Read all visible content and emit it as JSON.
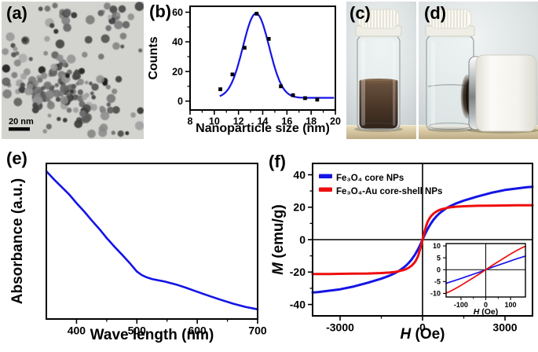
{
  "figure": {
    "panels": {
      "a": {
        "label": "(a)",
        "kind": "TEM micrograph of nanoparticles",
        "scalebar": "20 nm"
      },
      "b": {
        "label": "(b)",
        "kind": "particle size distribution chart"
      },
      "c": {
        "label": "(c)",
        "kind": "photo: vial with brown nanoparticle dispersion"
      },
      "d": {
        "label": "(d)",
        "kind": "photo: vial with clear liquid, particles pulled to white magnet"
      },
      "e": {
        "label": "(e)",
        "kind": "UV-vis absorbance spectrum"
      },
      "f": {
        "label": "(f)",
        "kind": "magnetization curves"
      }
    }
  },
  "chart_data": [
    {
      "id": "size-distribution",
      "type": "scatter",
      "xlabel": [
        {
          "text": "Nanoparticle size (nm)"
        }
      ],
      "ylabel": [
        {
          "text": "Counts"
        }
      ],
      "xlim": [
        8,
        20
      ],
      "ylim": [
        -6,
        64
      ],
      "xticks": [
        8,
        10,
        12,
        14,
        16,
        18,
        20
      ],
      "xminor": [
        9,
        11,
        13,
        15,
        17,
        19
      ],
      "yticks": [
        0,
        20,
        40,
        60
      ],
      "yminor": [
        10,
        30,
        50
      ],
      "grid": false,
      "point_color": "#000000",
      "points": [
        [
          10.5,
          8
        ],
        [
          11.5,
          18
        ],
        [
          12.5,
          36
        ],
        [
          13.5,
          59
        ],
        [
          14.5,
          42
        ],
        [
          15.5,
          10
        ],
        [
          16.5,
          4
        ],
        [
          17.5,
          2
        ],
        [
          18.5,
          1
        ]
      ],
      "fit": {
        "type": "gaussian",
        "color": "#1414e6",
        "baseline": 2.2,
        "amplitude": 57,
        "center": 13.45,
        "sigma": 1.08,
        "range": [
          10.45,
          19.9
        ]
      }
    },
    {
      "id": "uv-vis",
      "type": "line",
      "xlabel": [
        {
          "text": "Wave length (nm)"
        }
      ],
      "ylabel": [
        {
          "text": "Absorbance (a.u.)"
        }
      ],
      "xlim": [
        350,
        700
      ],
      "ylim": [
        0,
        1
      ],
      "xticks": [
        400,
        500,
        600,
        700
      ],
      "xminor": [
        450,
        550,
        650
      ],
      "yticks": [],
      "yminor": [],
      "grid": false,
      "series": [
        {
          "name": "absorbance",
          "color": "#1414e6",
          "points": [
            [
              350,
              0.95
            ],
            [
              362,
              0.9
            ],
            [
              375,
              0.85
            ],
            [
              388,
              0.8
            ],
            [
              400,
              0.745
            ],
            [
              413,
              0.69
            ],
            [
              425,
              0.635
            ],
            [
              438,
              0.578
            ],
            [
              450,
              0.52
            ],
            [
              462,
              0.468
            ],
            [
              475,
              0.415
            ],
            [
              488,
              0.36
            ],
            [
              500,
              0.305
            ],
            [
              508,
              0.283
            ],
            [
              516,
              0.268
            ],
            [
              525,
              0.257
            ],
            [
              535,
              0.249
            ],
            [
              545,
              0.242
            ],
            [
              555,
              0.232
            ],
            [
              568,
              0.218
            ],
            [
              582,
              0.2
            ],
            [
              600,
              0.175
            ],
            [
              620,
              0.148
            ],
            [
              640,
              0.122
            ],
            [
              660,
              0.098
            ],
            [
              680,
              0.078
            ],
            [
              700,
              0.062
            ]
          ]
        }
      ]
    },
    {
      "id": "magnetization",
      "type": "line",
      "xlabel": [
        {
          "text": "H",
          "italic": true
        },
        {
          "text": " (Oe)"
        }
      ],
      "ylabel": [
        {
          "text": "M",
          "italic": true
        },
        {
          "text": " (emu/g)"
        }
      ],
      "xlim": [
        -4000,
        4000
      ],
      "ylim": [
        -47,
        47
      ],
      "xticks": [
        -3000,
        0,
        3000
      ],
      "xminor": [
        -1500,
        1500
      ],
      "yticks": [
        -40,
        -20,
        0,
        20,
        40
      ],
      "yminor": [
        -30,
        -10,
        10,
        30
      ],
      "grid": false,
      "zero_axes": true,
      "legend": [
        {
          "label": "Fe₃O₄ core NPs",
          "color": "#1414e6"
        },
        {
          "label": "Fe₃O₄-Au core-shell NPs",
          "color": "#ee0e0e"
        }
      ],
      "series": [
        {
          "name": "Fe3O4 core NPs",
          "color": "#1414e6",
          "symmetric": true,
          "points": [
            [
              0,
              0
            ],
            [
              10,
              0.4
            ],
            [
              25,
              1.0
            ],
            [
              50,
              1.9
            ],
            [
              75,
              2.8
            ],
            [
              100,
              3.7
            ],
            [
              125,
              4.6
            ],
            [
              150,
              5.4
            ],
            [
              175,
              6.2
            ],
            [
              200,
              7.0
            ],
            [
              250,
              8.5
            ],
            [
              300,
              9.9
            ],
            [
              400,
              12.3
            ],
            [
              500,
              14.3
            ],
            [
              600,
              16.0
            ],
            [
              700,
              17.4
            ],
            [
              800,
              18.6
            ],
            [
              900,
              19.7
            ],
            [
              1000,
              20.6
            ],
            [
              1200,
              22.2
            ],
            [
              1500,
              24.1
            ],
            [
              2000,
              26.6
            ],
            [
              2500,
              28.9
            ],
            [
              3000,
              30.6
            ],
            [
              3400,
              31.5
            ],
            [
              3800,
              32.3
            ],
            [
              4000,
              32.6
            ]
          ]
        },
        {
          "name": "Fe3O4-Au core-shell NPs",
          "color": "#ee0e0e",
          "symmetric": true,
          "points": [
            [
              0,
              0
            ],
            [
              10,
              0.7
            ],
            [
              25,
              1.75
            ],
            [
              50,
              3.4
            ],
            [
              75,
              5.0
            ],
            [
              100,
              6.6
            ],
            [
              125,
              8.1
            ],
            [
              150,
              9.4
            ],
            [
              175,
              10.5
            ],
            [
              200,
              11.5
            ],
            [
              250,
              13.1
            ],
            [
              300,
              14.3
            ],
            [
              400,
              16.1
            ],
            [
              500,
              17.3
            ],
            [
              600,
              18.2
            ],
            [
              700,
              18.8
            ],
            [
              800,
              19.2
            ],
            [
              900,
              19.6
            ],
            [
              1000,
              19.9
            ],
            [
              1200,
              20.3
            ],
            [
              1500,
              20.6
            ],
            [
              2000,
              20.9
            ],
            [
              2500,
              21.0
            ],
            [
              3000,
              21.1
            ],
            [
              3400,
              21.15
            ],
            [
              3800,
              21.2
            ],
            [
              4000,
              21.2
            ]
          ]
        }
      ]
    },
    {
      "id": "magnetization-inset",
      "type": "line",
      "xlabel": [
        {
          "text": "H",
          "italic": true
        },
        {
          "text": " (Oe)"
        }
      ],
      "xlim": [
        -160,
        160
      ],
      "ylim": [
        -11.5,
        11
      ],
      "xticks": [
        -100,
        0,
        100
      ],
      "xminor": [
        -50,
        50
      ],
      "yticks": [
        -10,
        -5,
        0,
        5,
        10
      ],
      "yminor": [],
      "grid": false,
      "zero_axes": true,
      "series": [
        {
          "name": "Fe3O4 core NPs",
          "color": "#1414e6",
          "symmetric": true,
          "points": [
            [
              0,
              0
            ],
            [
              10,
              0.4
            ],
            [
              25,
              1.0
            ],
            [
              50,
              1.9
            ],
            [
              75,
              2.8
            ],
            [
              100,
              3.7
            ],
            [
              125,
              4.6
            ],
            [
              150,
              5.4
            ],
            [
              160,
              5.75
            ]
          ]
        },
        {
          "name": "Fe3O4-Au core-shell NPs",
          "color": "#ee0e0e",
          "symmetric": true,
          "points": [
            [
              0,
              0
            ],
            [
              10,
              0.7
            ],
            [
              25,
              1.75
            ],
            [
              50,
              3.4
            ],
            [
              75,
              5.0
            ],
            [
              100,
              6.6
            ],
            [
              125,
              8.1
            ],
            [
              150,
              9.4
            ],
            [
              160,
              9.8
            ]
          ]
        }
      ]
    }
  ]
}
